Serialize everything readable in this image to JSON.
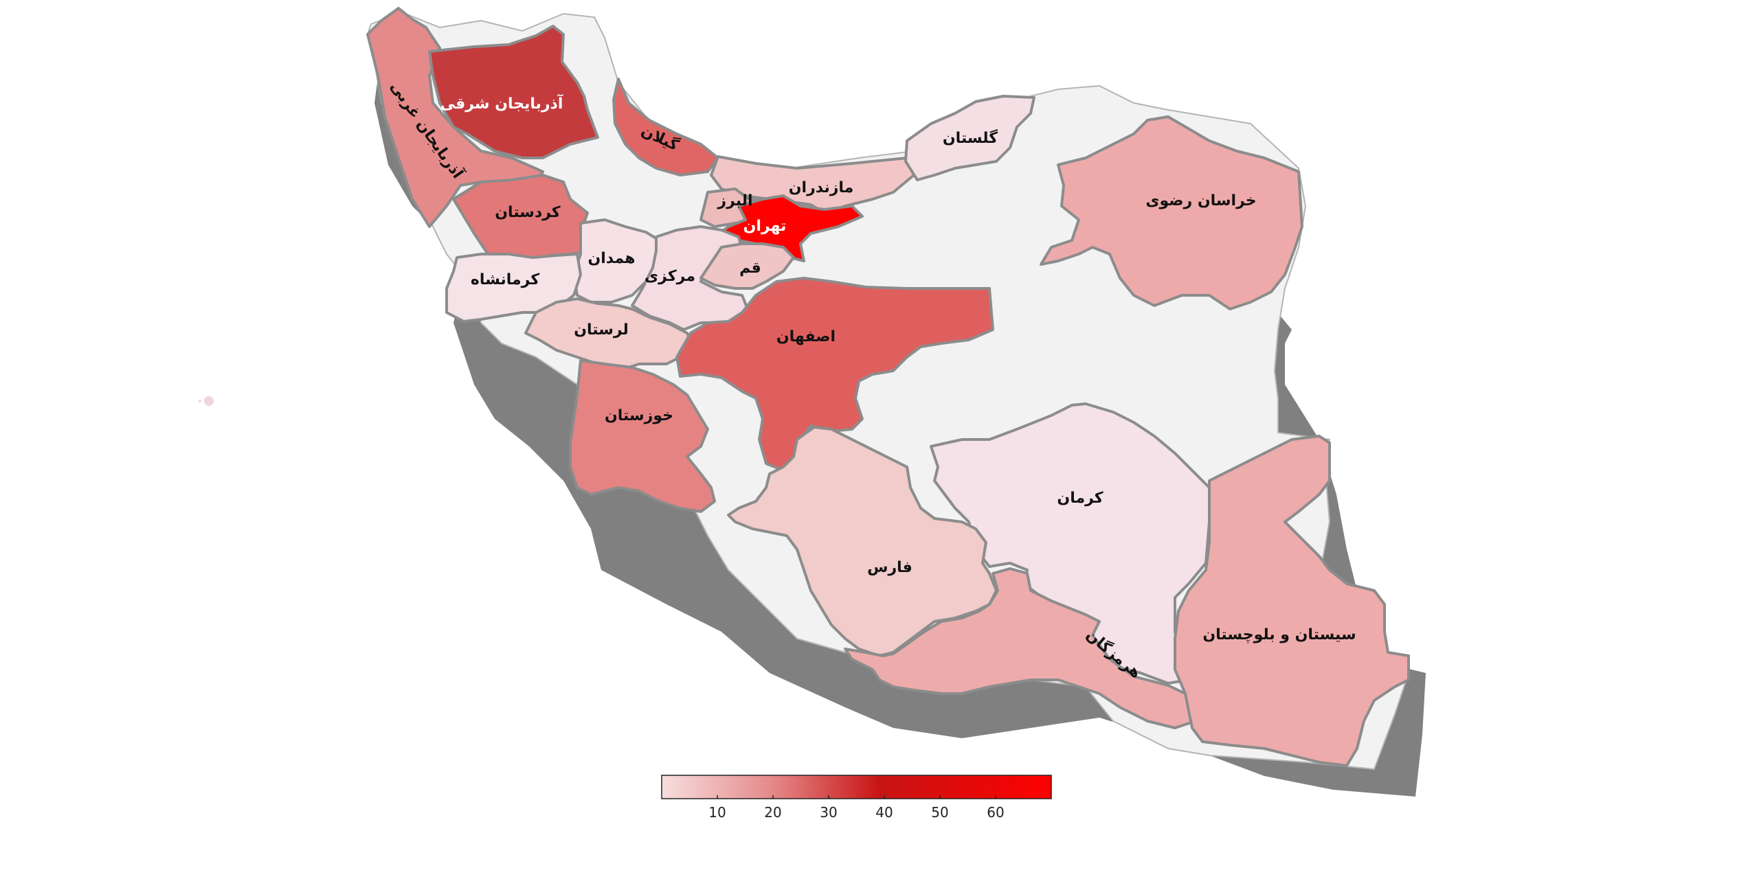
{
  "chart_data": {
    "type": "choropleth",
    "color_scale": {
      "min_color": "#f7dede",
      "mid_color": "#c81414",
      "max_color": "#ff0000",
      "ticks": [
        10,
        20,
        30,
        40,
        50,
        60
      ],
      "range": [
        0,
        70
      ]
    },
    "no_data_color": "#f2f2f2",
    "regions": [
      {
        "id": "azarbaijan-sharghi",
        "name": "آذربایجان شرقی",
        "value": 33,
        "fill": "#c43b3e"
      },
      {
        "id": "azarbaijan-gharbi",
        "name": "آذربایجان غربی",
        "value": 19,
        "fill": "#e58a8a"
      },
      {
        "id": "gilan",
        "name": "گیلان",
        "value": 25,
        "fill": "#e06666"
      },
      {
        "id": "mazandaran",
        "name": "مازندران",
        "value": 8,
        "fill": "#f2c6c6"
      },
      {
        "id": "golestan",
        "name": "گلستان",
        "value": 3,
        "fill": "#f4dfe4"
      },
      {
        "id": "khorasan-razavi",
        "name": "خراسان رضوی",
        "value": 14,
        "fill": "#eeaaaa"
      },
      {
        "id": "kordestan",
        "name": "کردستان",
        "value": 21,
        "fill": "#e27878"
      },
      {
        "id": "alborz",
        "name": "البرز",
        "value": 12,
        "fill": "#eebbbb"
      },
      {
        "id": "tehran",
        "name": "تهران",
        "value": 68,
        "fill": "#ff0000"
      },
      {
        "id": "hamedan",
        "name": "همدان",
        "value": 3,
        "fill": "#f5e1e6"
      },
      {
        "id": "markazi",
        "name": "مرکزی",
        "value": 4,
        "fill": "#f4dce2"
      },
      {
        "id": "qom",
        "name": "قم",
        "value": 9,
        "fill": "#f0c5c5"
      },
      {
        "id": "kermanshah",
        "name": "کرمانشاه",
        "value": 3,
        "fill": "#f5e3e8"
      },
      {
        "id": "lorestan",
        "name": "لرستان",
        "value": 8,
        "fill": "#f3cccc"
      },
      {
        "id": "esfahan",
        "name": "اصفهان",
        "value": 26,
        "fill": "#df5f5f"
      },
      {
        "id": "khuzestan",
        "name": "خوزستان",
        "value": 20,
        "fill": "#e58383"
      },
      {
        "id": "kerman",
        "name": "کرمان",
        "value": 3,
        "fill": "#f5e1e8"
      },
      {
        "id": "fars",
        "name": "فارس",
        "value": 8,
        "fill": "#f2cbcb"
      },
      {
        "id": "hormozgan",
        "name": "هرمزگان",
        "value": 14,
        "fill": "#eeabab"
      },
      {
        "id": "sistan-baluchestan",
        "name": "سیستان و بلوچستان",
        "value": 14,
        "fill": "#eeabab"
      }
    ]
  }
}
